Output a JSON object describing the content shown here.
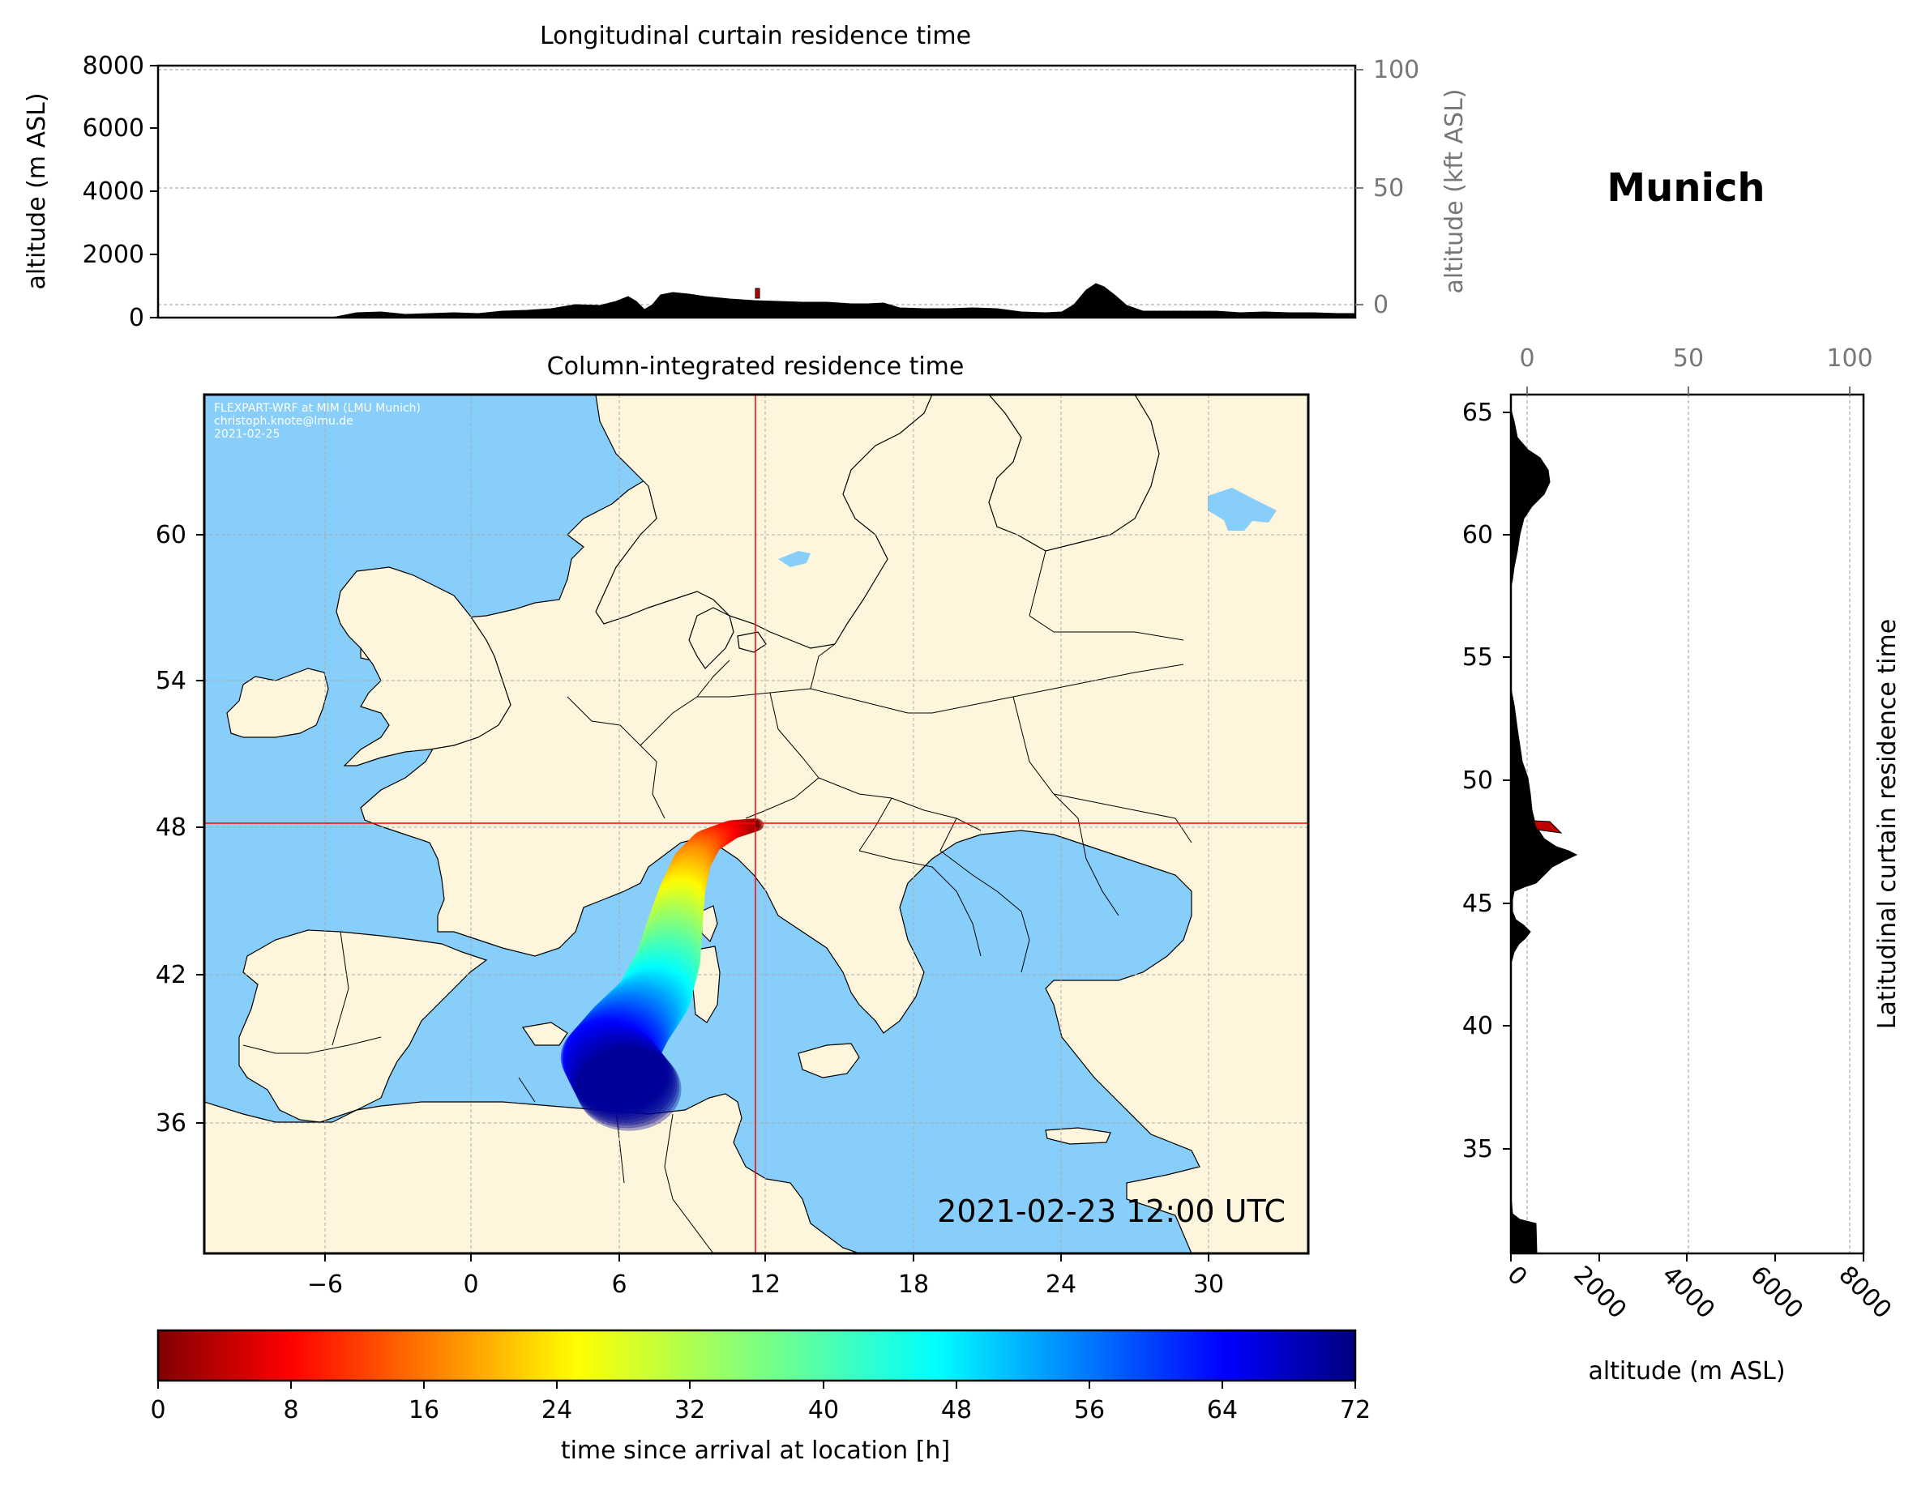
{
  "location": "Munich",
  "timestamp": "2021-02-23 12:00 UTC",
  "credits": [
    "FLEXPART-WRF at MIM (LMU Munich)",
    "christoph.knote@lmu.de",
    "2021-02-25"
  ],
  "longitudinal_panel": {
    "title": "Longitudinal curtain residence time",
    "ylabel": "altitude (m ASL)",
    "ylabel_right": "altitude (kft ASL)",
    "yticks": [
      "0",
      "2000",
      "4000",
      "6000",
      "8000"
    ],
    "yticks_right": [
      "0",
      "50",
      "100"
    ]
  },
  "map_panel": {
    "title": "Column-integrated residence time",
    "xticks": [
      "−6",
      "0",
      "6",
      "12",
      "18",
      "24",
      "30"
    ],
    "yticks": [
      "36",
      "42",
      "48",
      "54",
      "60"
    ]
  },
  "latitudinal_panel": {
    "ylabel_right": "Latitudinal curtain residence time",
    "xlabel": "altitude (m ASL)",
    "xticks": [
      "0",
      "2000",
      "4000",
      "6000",
      "8000"
    ],
    "xticks_top": [
      "0",
      "50",
      "100"
    ],
    "yticks": [
      "35",
      "40",
      "45",
      "50",
      "55",
      "60",
      "65"
    ]
  },
  "colorbar": {
    "label": "time since arrival at location [h]",
    "ticks": [
      "0",
      "8",
      "16",
      "24",
      "32",
      "40",
      "48",
      "56",
      "64",
      "72"
    ]
  },
  "colors": {
    "land": "#fdf5dc",
    "sea": "#87cefa",
    "marker": "#ff0000",
    "terrain": "#000000"
  },
  "chart_data": {
    "type": "heatmap",
    "colormap": "jet_r",
    "colorbar_range": [
      0,
      72
    ],
    "release_point": {
      "lon": 11.6,
      "lat": 48.1
    },
    "lon_range": [
      -11,
      34
    ],
    "lat_range": [
      30,
      65
    ],
    "plume_path": [
      {
        "lon": 11.6,
        "lat": 48.1,
        "hours": 0
      },
      {
        "lon": 10.6,
        "lat": 47.9,
        "hours": 6
      },
      {
        "lon": 9.6,
        "lat": 47.4,
        "hours": 12
      },
      {
        "lon": 9.0,
        "lat": 46.6,
        "hours": 18
      },
      {
        "lon": 8.6,
        "lat": 45.4,
        "hours": 24
      },
      {
        "lon": 8.3,
        "lat": 44.0,
        "hours": 32
      },
      {
        "lon": 8.0,
        "lat": 42.5,
        "hours": 40
      },
      {
        "lon": 7.4,
        "lat": 41.0,
        "hours": 48
      },
      {
        "lon": 6.4,
        "lat": 39.8,
        "hours": 56
      },
      {
        "lon": 5.6,
        "lat": 38.6,
        "hours": 64
      },
      {
        "lon": 6.5,
        "lat": 37.2,
        "hours": 72
      }
    ]
  }
}
